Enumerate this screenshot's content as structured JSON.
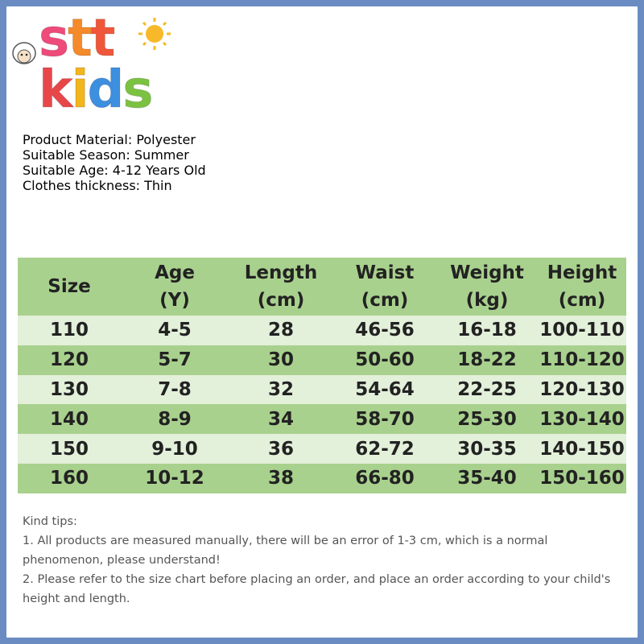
{
  "logo": {
    "lines": [
      [
        "s",
        "t",
        "t"
      ],
      [
        "k",
        "i",
        "d",
        "s"
      ]
    ]
  },
  "info": [
    "Product Material: Polyester",
    "Suitable Season: Summer",
    "Suitable Age: 4-12 Years Old",
    "Clothes thickness: Thin"
  ],
  "table": {
    "header": [
      [
        "Size"
      ],
      [
        "Age",
        "(Y)"
      ],
      [
        "Length",
        "(cm)"
      ],
      [
        "Waist",
        "(cm)"
      ],
      [
        "Weight",
        "(kg)"
      ],
      [
        "Height",
        "(cm)"
      ]
    ],
    "rows": [
      [
        "110",
        "4-5",
        "28",
        "46-56",
        "16-18",
        "100-110"
      ],
      [
        "120",
        "5-7",
        "30",
        "50-60",
        "18-22",
        "110-120"
      ],
      [
        "130",
        "7-8",
        "32",
        "54-64",
        "22-25",
        "120-130"
      ],
      [
        "140",
        "8-9",
        "34",
        "58-70",
        "25-30",
        "130-140"
      ],
      [
        "150",
        "9-10",
        "36",
        "62-72",
        "30-35",
        "140-150"
      ],
      [
        "160",
        "10-12",
        "38",
        "66-80",
        "35-40",
        "150-160"
      ]
    ]
  },
  "tips": {
    "title": "Kind tips:",
    "items": [
      "1. All products are measured manually, there will be an error of 1-3 cm, which is a normal phenomenon, please understand!",
      "2. Please refer to the size chart before placing an order, and place an order according to your child's height and length."
    ]
  }
}
